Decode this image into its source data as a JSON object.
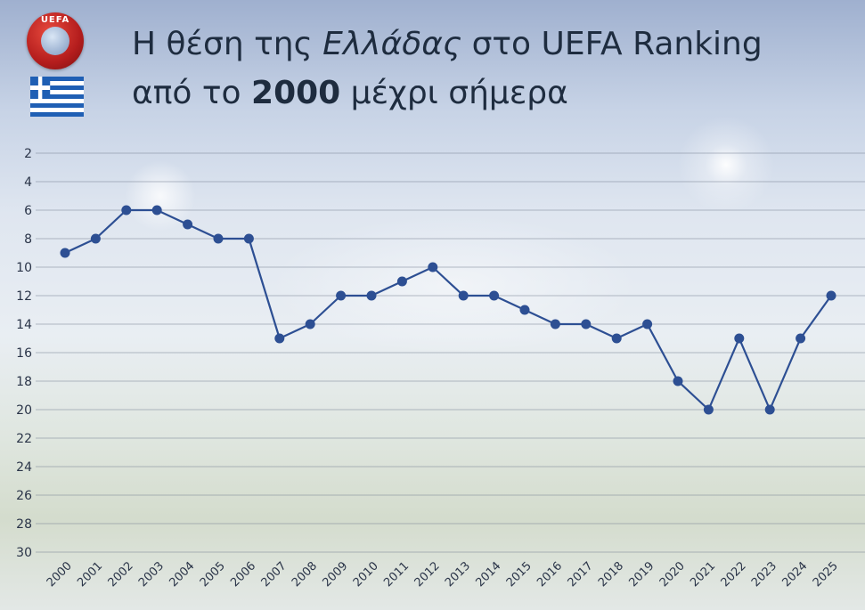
{
  "header": {
    "logo_text": "UEFA",
    "title_pre": "Η θέση της ",
    "title_em": "Ελλάδας",
    "title_post": " στο UEFA Ranking",
    "subtitle_pre": "από το ",
    "subtitle_strong": "2000",
    "subtitle_post": " μέχρι σήμερα"
  },
  "icons": {
    "logo": "uefa-logo-icon",
    "flag": "greek-flag-icon"
  },
  "colors": {
    "line": "#2d4f93",
    "marker": "#2d4f93",
    "title": "#1e2c3f",
    "axis_text": "#2a3448",
    "grid": "#7a8494"
  },
  "chart_data": {
    "type": "line",
    "x": [
      "2000",
      "2001",
      "2002",
      "2003",
      "2004",
      "2005",
      "2006",
      "2007",
      "2008",
      "2009",
      "2010",
      "2011",
      "2012",
      "2013",
      "2014",
      "2015",
      "2016",
      "2017",
      "2018",
      "2019",
      "2020",
      "2021",
      "2022",
      "2023",
      "2024",
      "2025"
    ],
    "values": [
      9,
      8,
      6,
      6,
      7,
      8,
      8,
      15,
      14,
      12,
      12,
      11,
      10,
      12,
      12,
      13,
      14,
      14,
      15,
      14,
      18,
      20,
      15,
      20,
      15,
      12
    ],
    "y_ticks": [
      "2",
      "4",
      "6",
      "8",
      "10",
      "12",
      "14",
      "16",
      "18",
      "20",
      "22",
      "24",
      "26",
      "28",
      "30"
    ],
    "ylim": [
      30,
      2
    ],
    "y_inverted": true,
    "grid": true,
    "legend": "none",
    "xlabel": "",
    "ylabel": ""
  }
}
